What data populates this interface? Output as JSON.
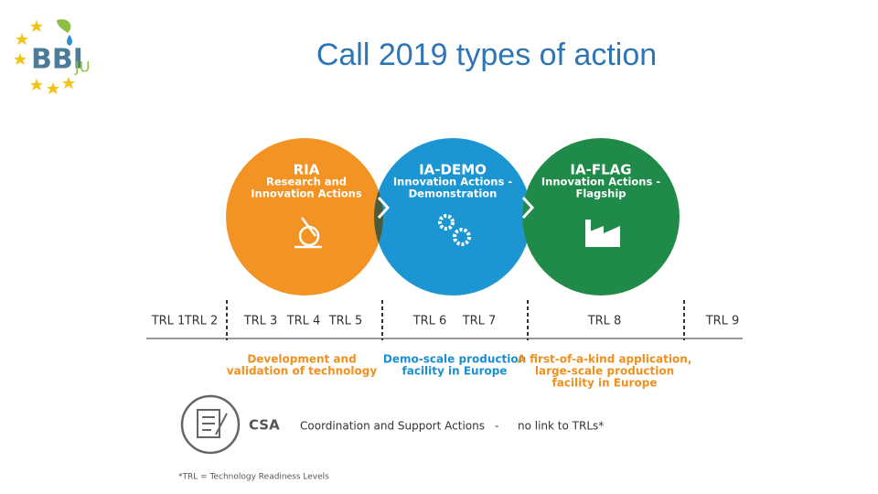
{
  "logo": {
    "name": "BBI",
    "suffix": "JU"
  },
  "title": "Call 2019 types of action",
  "actions": [
    {
      "code": "RIA",
      "lines": [
        "Research and",
        "Innovation Actions"
      ]
    },
    {
      "code": "IA-DEMO",
      "lines": [
        "Innovation Actions -",
        "Demonstration"
      ]
    },
    {
      "code": "IA-FLAG",
      "lines": [
        "Innovation Actions -",
        "Flagship"
      ]
    }
  ],
  "trl_labels": [
    "TRL 1",
    "TRL 2",
    "TRL 3",
    "TRL 4",
    "TRL 5",
    "TRL 6",
    "TRL 7",
    "TRL 8",
    "TRL 9"
  ],
  "descriptions": [
    {
      "lines": [
        "Development and",
        "validation of technology"
      ]
    },
    {
      "lines": [
        "Demo-scale production",
        "facility in Europe"
      ]
    },
    {
      "lines": [
        "A first-of-a-kind application,",
        "large-scale production",
        "facility in Europe"
      ]
    }
  ],
  "csa": {
    "code": "CSA",
    "name": "Coordination and Support Actions",
    "separator": "-",
    "note": "no link to TRLs*"
  },
  "footnote": "*TRL = Technology Readiness Levels"
}
